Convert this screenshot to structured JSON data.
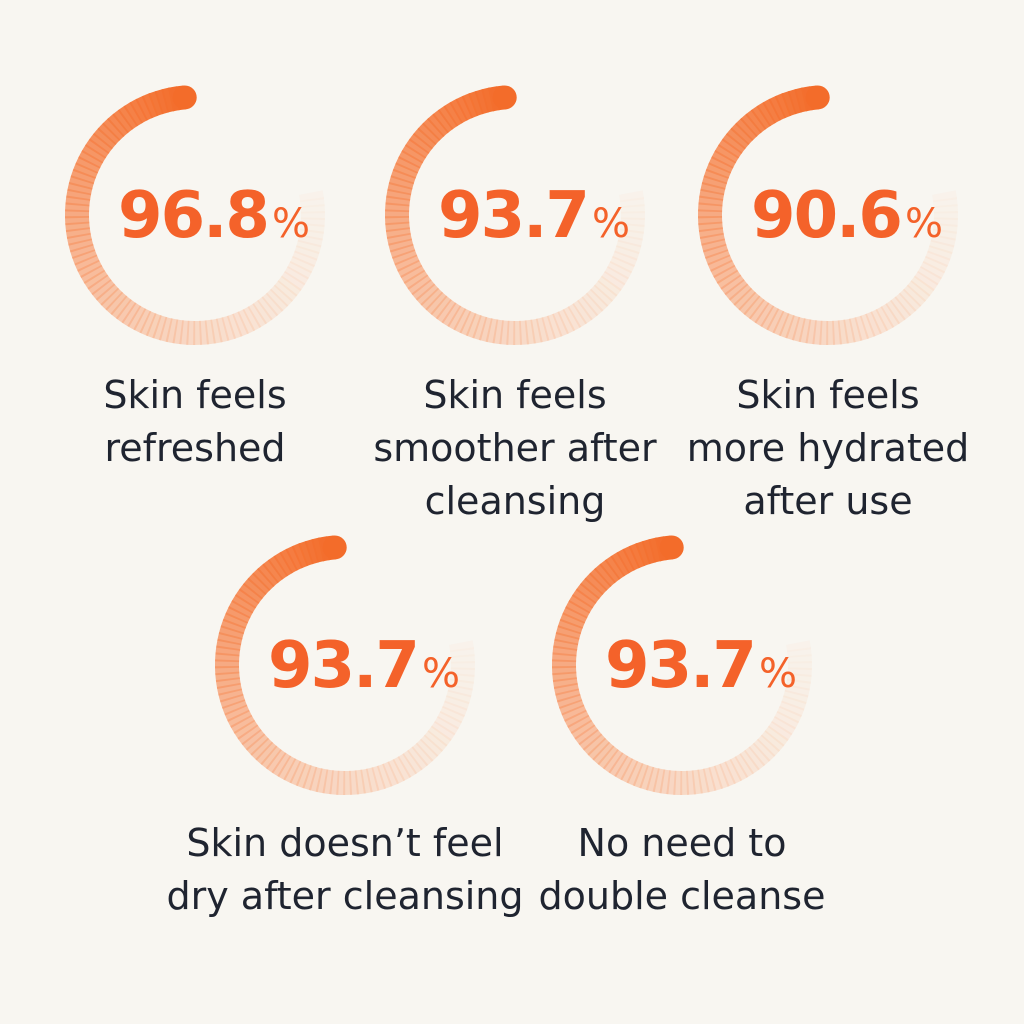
{
  "stats": [
    {
      "value": "96.8",
      "unit": "%",
      "label_lines": [
        "Skin feels",
        "refreshed"
      ]
    },
    {
      "value": "93.7",
      "unit": "%",
      "label_lines": [
        "Skin feels",
        "smoother after",
        "cleansing"
      ]
    },
    {
      "value": "90.6",
      "unit": "%",
      "label_lines": [
        "Skin feels",
        "more hydrated",
        "after use"
      ]
    },
    {
      "value": "93.7",
      "unit": "%",
      "label_lines": [
        "Skin doesn’t feel",
        "dry after cleansing"
      ]
    },
    {
      "value": "93.7",
      "unit": "%",
      "label_lines": [
        "No need to",
        "double cleanse"
      ]
    }
  ]
}
